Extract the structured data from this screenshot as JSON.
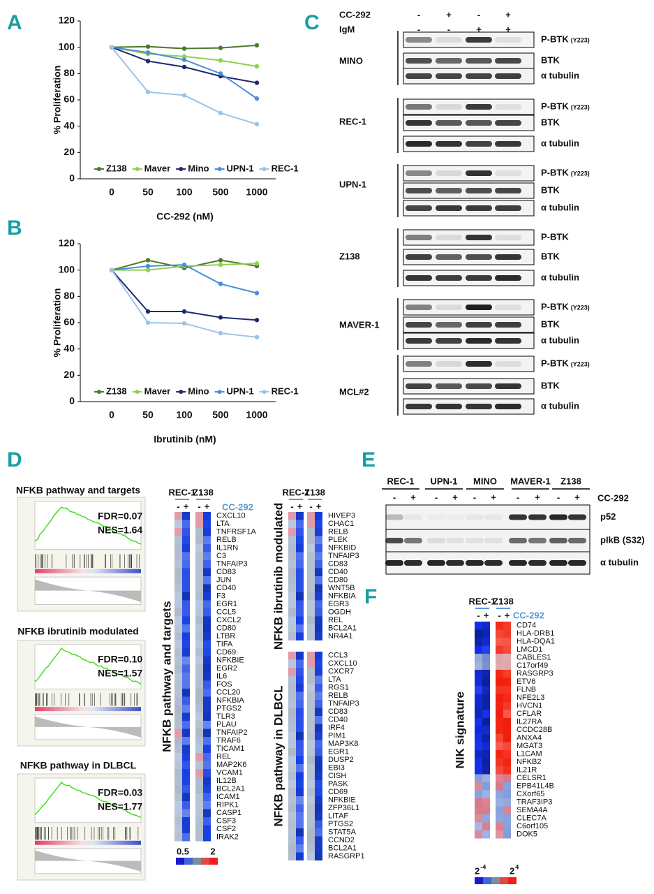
{
  "panel_labels": [
    "A",
    "B",
    "C",
    "D",
    "E",
    "F"
  ],
  "chart_data": [
    {
      "type": "line",
      "ylabel": "% Proliferation",
      "xlabel": "CC-292 (nM)",
      "categories": [
        "0",
        "50",
        "100",
        "500",
        "1000"
      ],
      "ylim": [
        0,
        120
      ],
      "yticks": [
        0,
        20,
        40,
        60,
        80,
        100,
        120
      ],
      "legend": "bottom",
      "series": [
        {
          "name": "Z138",
          "color": "#4e7a2c",
          "values": [
            100,
            100.5,
            99,
            99.5,
            101.5
          ]
        },
        {
          "name": "Maver",
          "color": "#8fd14f",
          "values": [
            100,
            95,
            93,
            90,
            85.5
          ]
        },
        {
          "name": "Mino",
          "color": "#1f2a6b",
          "values": [
            100,
            89.5,
            85,
            78,
            73
          ]
        },
        {
          "name": "UPN-1",
          "color": "#4a8fd8",
          "values": [
            100,
            96,
            90.5,
            80,
            61
          ]
        },
        {
          "name": "REC-1",
          "color": "#9cc3e6",
          "values": [
            100,
            66,
            63.5,
            50,
            41.5
          ]
        }
      ]
    },
    {
      "type": "line",
      "ylabel": "% Proliferation",
      "xlabel": "Ibrutinib (nM)",
      "categories": [
        "0",
        "50",
        "100",
        "500",
        "1000"
      ],
      "ylim": [
        0,
        120
      ],
      "yticks": [
        0,
        20,
        40,
        60,
        80,
        100,
        120
      ],
      "legend": "bottom",
      "series": [
        {
          "name": "Z138",
          "color": "#4e7a2c",
          "values": [
            100,
            107.5,
            101.5,
            107.5,
            103
          ]
        },
        {
          "name": "Maver",
          "color": "#8fd14f",
          "values": [
            100,
            100,
            103,
            104,
            105
          ]
        },
        {
          "name": "Mino",
          "color": "#1f2a6b",
          "values": [
            100,
            68.5,
            68.5,
            64,
            62
          ]
        },
        {
          "name": "UPN-1",
          "color": "#4a8fd8",
          "values": [
            100,
            103,
            104,
            89.5,
            82.5
          ]
        },
        {
          "name": "REC-1",
          "color": "#9cc3e6",
          "values": [
            100,
            60,
            59.5,
            52,
            49
          ]
        }
      ]
    }
  ],
  "blots_c": {
    "treatments": [
      {
        "name": "CC-292",
        "signs": [
          "-",
          "+",
          "-",
          "+"
        ]
      },
      {
        "name": "IgM",
        "signs": [
          "-",
          "-",
          "+",
          "+"
        ]
      }
    ],
    "groups": [
      {
        "name": "MINO",
        "rows": [
          {
            "label": "P-BTK",
            "site": "(Y223)"
          },
          {
            "label": "BTK"
          },
          {
            "label": "α tubulin"
          }
        ]
      },
      {
        "name": "REC-1",
        "rows": [
          {
            "label": "P-BTK",
            "site": "(Y223)"
          },
          {
            "label": "BTK"
          },
          {
            "label": "α tubulin"
          }
        ]
      },
      {
        "name": "UPN-1",
        "rows": [
          {
            "label": "P-BTK",
            "site": "(Y223)"
          },
          {
            "label": "BTK"
          },
          {
            "label": "α tubulin"
          }
        ]
      },
      {
        "name": "Z138",
        "rows": [
          {
            "label": "P-BTK"
          },
          {
            "label": "BTK"
          },
          {
            "label": "α tubulin"
          }
        ]
      },
      {
        "name": "MAVER-1",
        "rows": [
          {
            "label": "P-BTK",
            "site": "(Y223)"
          },
          {
            "label": "BTK"
          },
          {
            "label": "α tubulin"
          }
        ]
      },
      {
        "name": "MCL#2",
        "rows": [
          {
            "label": "P-BTK",
            "site": "(Y223)"
          },
          {
            "label": "BTK"
          },
          {
            "label": "α tubulin"
          }
        ]
      }
    ]
  },
  "gsea": [
    {
      "title": "NFKB pathway and targets",
      "fdr": "FDR=0.07",
      "nes": "NES=1.64"
    },
    {
      "title": "NFKB ibrutinib modulated",
      "fdr": "FDR=0.10",
      "nes": "NES=1.57"
    },
    {
      "title": "NFKB pathway in DLBCL",
      "fdr": "FDR=0.03",
      "nes": "NES=1.77"
    }
  ],
  "heatmaps_d": {
    "blocks": [
      {
        "columns": [
          {
            "name": "REC-1",
            "signs": [
              "-",
              "+"
            ]
          },
          {
            "name": "Z138",
            "signs": [
              "-",
              "+"
            ]
          }
        ],
        "treatment": "CC-292",
        "sets": [
          {
            "title": "NFKB pathway and targets",
            "genes": [
              "CXCL10",
              "LTA",
              "TNFRSF1A",
              "RELB",
              "IL1RN",
              "C3",
              "TNFAIP3",
              "CD83",
              "JUN",
              "CD40",
              "F3",
              "EGR1",
              "CCL5",
              "CXCL2",
              "CD80",
              "LTBR",
              "TIFA",
              "CD69",
              "NFKBIE",
              "EGR2",
              "IL6",
              "FOS",
              "CCL20",
              "NFKBIA",
              "PTGS2",
              "TLR3",
              "PLAU",
              "TNFAIP2",
              "TRAF6",
              "TICAM1",
              "REL",
              "MAP2K6",
              "VCAM1",
              "IL12B",
              "BCL2A1",
              "ICAM1",
              "RIPK1",
              "CASP1",
              "CSF3",
              "CSF2",
              "IRAK2"
            ]
          }
        ]
      },
      {
        "columns": [
          {
            "name": "REC-1",
            "signs": [
              "-",
              "+"
            ]
          },
          {
            "name": "Z138",
            "signs": [
              "-",
              "+"
            ]
          }
        ],
        "sets": [
          {
            "title": "NFKB ibrutinib modulated",
            "genes": [
              "HIVEP3",
              "CHAC1",
              "RELB",
              "PLEK",
              "NFKBID",
              "TNFAIP3",
              "CD83",
              "CD40",
              "CD80",
              "WNT5B",
              "NFKBIA",
              "EGR3",
              "OGDH",
              "REL",
              "BCL2A1",
              "NR4A1"
            ]
          },
          {
            "title": "NFKB pathway in DLBCL",
            "genes": [
              "CCL3",
              "CXCL10",
              "CXCR7",
              "LTA",
              "RGS1",
              "RELB",
              "TNFAIP3",
              "CD83",
              "CD40",
              "IRF4",
              "PIM1",
              "MAP3K8",
              "EGR1",
              "DUSP2",
              "EBI3",
              "CISH",
              "PASK",
              "CD69",
              "NFKBIE",
              "ZFP36L1",
              "LITAF",
              "PTGS2",
              "STAT5A",
              "CCND2",
              "BCL2A1",
              "RASGRP1"
            ]
          }
        ]
      }
    ],
    "scale": [
      "0.5",
      "2"
    ]
  },
  "blot_e": {
    "columns": [
      {
        "name": "REC-1",
        "signs": [
          "-",
          "+"
        ]
      },
      {
        "name": "UPN-1",
        "signs": [
          "-",
          "+"
        ]
      },
      {
        "name": "MINO",
        "signs": [
          "-",
          "+"
        ]
      },
      {
        "name": "MAVER-1",
        "signs": [
          "-",
          "+"
        ]
      },
      {
        "name": "Z138",
        "signs": [
          "-",
          "+"
        ]
      }
    ],
    "treatment": "CC-292",
    "rows": [
      "p52",
      "pIkB (S32)",
      "α tubulin"
    ]
  },
  "heatmap_f": {
    "title": "NIK signature",
    "columns": [
      {
        "name": "REC-1",
        "signs": [
          "-",
          "+"
        ]
      },
      {
        "name": "Z138",
        "signs": [
          "-",
          "+"
        ]
      }
    ],
    "treatment": "CC-292",
    "genes": [
      "CD74",
      "HLA-DRB1",
      "HLA-DQA1",
      "LMCD1",
      "CABLES1",
      "C17orf49",
      "RASGRP3",
      "ETV6",
      "FLNB",
      "NFE2L3",
      "HVCN1",
      "CFLAR",
      "IL27RA",
      "CCDC28B",
      "ANXA4",
      "MGAT3",
      "L1CAM",
      "NFKB2",
      "IL21R",
      "CELSR1",
      "EPB41L4B",
      "CXorf65",
      "TRAF3IP3",
      "SEMA4A",
      "CLEC7A",
      "C6orf105",
      "DOK5"
    ],
    "scale": [
      {
        "base": "2",
        "exp": "-4"
      },
      {
        "base": "2",
        "exp": "4"
      }
    ]
  }
}
